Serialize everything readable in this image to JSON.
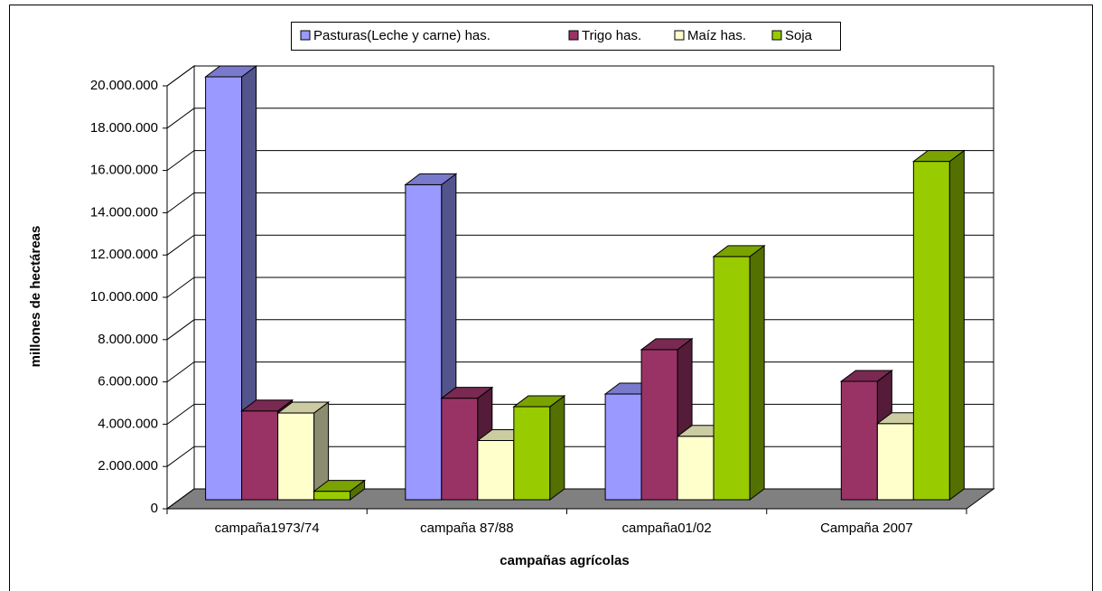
{
  "chart_data": {
    "type": "bar3d",
    "xlabel": "campañas agrícolas",
    "ylabel": "millones de hectáreas",
    "categories": [
      "campaña1973/74",
      "campaña 87/88",
      "campaña01/02",
      "Campaña 2007"
    ],
    "series": [
      {
        "name": "Pasturas(Leche y carne) has.",
        "color": "#9999ff",
        "values": [
          20000000,
          14900000,
          5000000,
          null
        ]
      },
      {
        "name": "Trigo has.",
        "color": "#993366",
        "values": [
          4200000,
          4800000,
          7100000,
          5600000
        ]
      },
      {
        "name": "Maíz has.",
        "color": "#ffffcc",
        "values": [
          4100000,
          2800000,
          3000000,
          3600000
        ]
      },
      {
        "name": "Soja",
        "color": "#99cc00",
        "values": [
          400000,
          4400000,
          11500000,
          16000000
        ]
      }
    ],
    "ylim": [
      0,
      20000000
    ],
    "yticks": [
      0,
      {
        "value": 2000000,
        "label": "2.000.000"
      },
      {
        "value": 4000000,
        "label": "4.000.000"
      },
      {
        "value": 6000000,
        "label": "6.000.000"
      },
      {
        "value": 8000000,
        "label": "8.000.000"
      },
      {
        "value": 10000000,
        "label": "10.000.000"
      },
      {
        "value": 12000000,
        "label": "12.000.000"
      },
      {
        "value": 14000000,
        "label": "14.000.000"
      },
      {
        "value": 16000000,
        "label": "16.000.000"
      },
      {
        "value": 18000000,
        "label": "18.000.000"
      },
      {
        "value": 20000000,
        "label": "20.000.000"
      }
    ],
    "grid": true,
    "legend": "top"
  }
}
